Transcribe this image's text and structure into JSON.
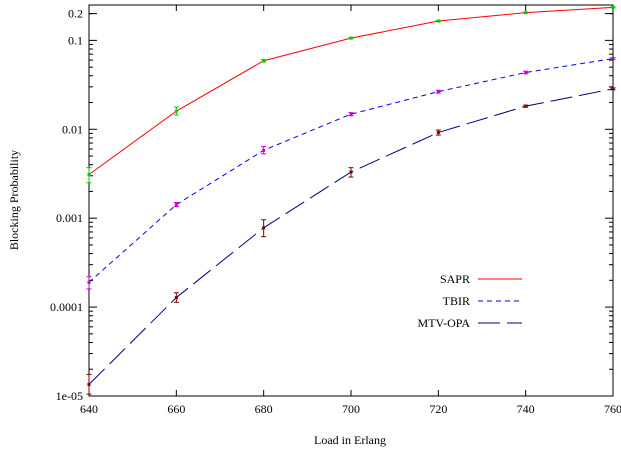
{
  "chart_data": {
    "type": "line",
    "xlabel": "Load in Erlang",
    "ylabel": "Blocking Probability",
    "x": [
      640,
      660,
      680,
      700,
      720,
      740,
      760
    ],
    "xlim": [
      640,
      760
    ],
    "ylim": [
      1e-05,
      0.25
    ],
    "yscale": "log",
    "x_ticks": [
      "640",
      "660",
      "680",
      "700",
      "720",
      "740",
      "760"
    ],
    "y_ticks": [
      {
        "value": 0.2,
        "label": "0.2"
      },
      {
        "value": 0.1,
        "label": "0.1"
      },
      {
        "value": 0.01,
        "label": "0.01"
      },
      {
        "value": 0.001,
        "label": "0.001"
      },
      {
        "value": 0.0001,
        "label": "0.0001"
      },
      {
        "value": 1e-05,
        "label": "1e-05"
      }
    ],
    "grid": false,
    "legend_position": "bottom-right",
    "series": [
      {
        "name": "SAPR",
        "color": "#ff0000",
        "errorbar_color": "#00cc00",
        "dash": "solid",
        "values": [
          0.0031,
          0.016,
          0.059,
          0.106,
          0.165,
          0.205,
          0.235
        ],
        "err_low": [
          0.0025,
          0.0145,
          0.057,
          0.104,
          0.162,
          0.202,
          0.232
        ],
        "err_high": [
          0.0037,
          0.0178,
          0.061,
          0.108,
          0.168,
          0.208,
          0.238
        ]
      },
      {
        "name": "TBIR",
        "color": "#0000ff",
        "errorbar_color": "#cc00cc",
        "dash": "dashed",
        "values": [
          0.00019,
          0.00142,
          0.0058,
          0.0148,
          0.0265,
          0.0435,
          0.0625
        ],
        "err_low": [
          0.00016,
          0.00135,
          0.0053,
          0.0142,
          0.0255,
          0.042,
          0.061
        ],
        "err_high": [
          0.00022,
          0.0015,
          0.0064,
          0.0154,
          0.0275,
          0.045,
          0.064
        ]
      },
      {
        "name": "MTV-OPA",
        "color": "#000080",
        "errorbar_color": "#800000",
        "dash": "longdash",
        "values": [
          1.35e-05,
          0.000128,
          0.00078,
          0.0033,
          0.0092,
          0.0182,
          0.0285
        ],
        "err_low": [
          1.05e-05,
          0.000113,
          0.00062,
          0.0029,
          0.0086,
          0.0177,
          0.0278
        ],
        "err_high": [
          1.75e-05,
          0.000145,
          0.00096,
          0.0037,
          0.0098,
          0.0187,
          0.0292
        ]
      }
    ]
  }
}
